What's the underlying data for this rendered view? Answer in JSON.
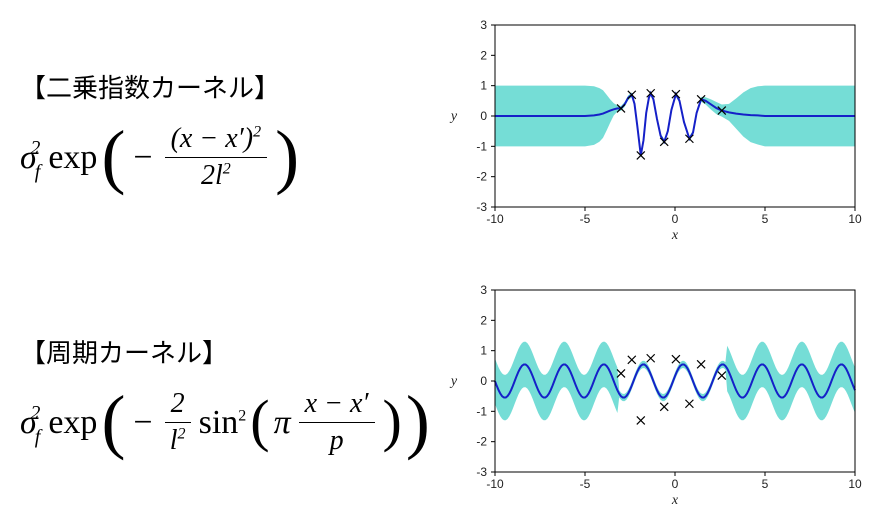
{
  "kernel1": {
    "heading": "【二乗指数カーネル】",
    "formula_parts": {
      "sigma_base": "σ",
      "sigma_sub": "f",
      "sigma_sup": "2",
      "exp": "exp",
      "num": "(x − x′)",
      "num_sup": "2",
      "den_2": "2",
      "den_l": "l",
      "den_sup": "2"
    },
    "chart": {
      "type": "gp-plot",
      "xlim": [
        -10,
        10
      ],
      "ylim": [
        -3,
        3
      ],
      "xticks": [
        -10,
        -5,
        0,
        5,
        10
      ],
      "yticks": [
        -3,
        -2,
        -1,
        0,
        1,
        2,
        3
      ],
      "xlabel": "x",
      "ylabel": "y",
      "band_color": "#6edbd4",
      "mean_color": "#1520c8",
      "background_color": "#ffffff",
      "box_border_color": "#000000",
      "tick_fontsize": 12,
      "label_fontsize": 14,
      "train_points": [
        [
          -3.0,
          0.25
        ],
        [
          -2.4,
          0.7
        ],
        [
          -1.9,
          -1.3
        ],
        [
          -1.35,
          0.75
        ],
        [
          -0.6,
          -0.85
        ],
        [
          0.05,
          0.72
        ],
        [
          0.8,
          -0.75
        ],
        [
          1.45,
          0.55
        ],
        [
          2.6,
          0.18
        ]
      ],
      "mean_line": [
        [
          -10,
          0.0
        ],
        [
          -9,
          0.0
        ],
        [
          -8,
          0.0
        ],
        [
          -7,
          0.0
        ],
        [
          -6,
          0.0
        ],
        [
          -5.5,
          0.0
        ],
        [
          -5,
          0.0
        ],
        [
          -4.5,
          0.02
        ],
        [
          -4.2,
          0.05
        ],
        [
          -4.0,
          0.08
        ],
        [
          -3.8,
          0.13
        ],
        [
          -3.6,
          0.18
        ],
        [
          -3.4,
          0.22
        ],
        [
          -3.2,
          0.25
        ],
        [
          -3.0,
          0.25
        ],
        [
          -2.8,
          0.38
        ],
        [
          -2.6,
          0.6
        ],
        [
          -2.4,
          0.7
        ],
        [
          -2.25,
          0.4
        ],
        [
          -2.1,
          -0.3
        ],
        [
          -1.9,
          -1.3
        ],
        [
          -1.75,
          -0.8
        ],
        [
          -1.6,
          0.1
        ],
        [
          -1.45,
          0.6
        ],
        [
          -1.35,
          0.75
        ],
        [
          -1.2,
          0.55
        ],
        [
          -1.0,
          -0.1
        ],
        [
          -0.8,
          -0.65
        ],
        [
          -0.6,
          -0.85
        ],
        [
          -0.4,
          -0.5
        ],
        [
          -0.2,
          0.2
        ],
        [
          0.05,
          0.72
        ],
        [
          0.25,
          0.5
        ],
        [
          0.5,
          -0.2
        ],
        [
          0.8,
          -0.75
        ],
        [
          1.0,
          -0.55
        ],
        [
          1.2,
          0.1
        ],
        [
          1.45,
          0.55
        ],
        [
          1.7,
          0.5
        ],
        [
          2.0,
          0.38
        ],
        [
          2.3,
          0.26
        ],
        [
          2.6,
          0.18
        ],
        [
          3.0,
          0.12
        ],
        [
          3.4,
          0.08
        ],
        [
          3.8,
          0.05
        ],
        [
          4.2,
          0.03
        ],
        [
          4.6,
          0.02
        ],
        [
          5,
          0.0
        ],
        [
          6,
          0.0
        ],
        [
          7,
          0.0
        ],
        [
          8,
          0.0
        ],
        [
          9,
          0.0
        ],
        [
          10,
          0.0
        ]
      ],
      "band_upper": [
        [
          -10,
          1.0
        ],
        [
          -9,
          1.0
        ],
        [
          -8,
          1.0
        ],
        [
          -7,
          1.0
        ],
        [
          -6,
          1.0
        ],
        [
          -5.5,
          1.0
        ],
        [
          -5,
          1.0
        ],
        [
          -4.5,
          0.98
        ],
        [
          -4.2,
          0.92
        ],
        [
          -4.0,
          0.85
        ],
        [
          -3.8,
          0.7
        ],
        [
          -3.6,
          0.55
        ],
        [
          -3.4,
          0.42
        ],
        [
          -3.2,
          0.35
        ],
        [
          -3.0,
          0.33
        ],
        [
          -2.8,
          0.46
        ],
        [
          -2.6,
          0.68
        ],
        [
          -2.4,
          0.78
        ],
        [
          -2.25,
          0.48
        ],
        [
          -2.1,
          -0.22
        ],
        [
          -1.9,
          -1.22
        ],
        [
          -1.75,
          -0.72
        ],
        [
          -1.6,
          0.18
        ],
        [
          -1.45,
          0.68
        ],
        [
          -1.35,
          0.83
        ],
        [
          -1.2,
          0.63
        ],
        [
          -1.0,
          -0.02
        ],
        [
          -0.8,
          -0.57
        ],
        [
          -0.6,
          -0.77
        ],
        [
          -0.4,
          -0.42
        ],
        [
          -0.2,
          0.28
        ],
        [
          0.05,
          0.8
        ],
        [
          0.25,
          0.58
        ],
        [
          0.5,
          -0.12
        ],
        [
          0.8,
          -0.67
        ],
        [
          1.0,
          -0.47
        ],
        [
          1.2,
          0.18
        ],
        [
          1.45,
          0.63
        ],
        [
          1.7,
          0.62
        ],
        [
          2.0,
          0.55
        ],
        [
          2.3,
          0.46
        ],
        [
          2.6,
          0.38
        ],
        [
          3.0,
          0.4
        ],
        [
          3.4,
          0.58
        ],
        [
          3.8,
          0.78
        ],
        [
          4.2,
          0.92
        ],
        [
          4.6,
          0.98
        ],
        [
          5,
          1.0
        ],
        [
          6,
          1.0
        ],
        [
          7,
          1.0
        ],
        [
          8,
          1.0
        ],
        [
          9,
          1.0
        ],
        [
          10,
          1.0
        ]
      ],
      "band_lower": [
        [
          -10,
          -1.0
        ],
        [
          -9,
          -1.0
        ],
        [
          -8,
          -1.0
        ],
        [
          -7,
          -1.0
        ],
        [
          -6,
          -1.0
        ],
        [
          -5.5,
          -1.0
        ],
        [
          -5,
          -1.0
        ],
        [
          -4.5,
          -0.95
        ],
        [
          -4.2,
          -0.85
        ],
        [
          -4.0,
          -0.72
        ],
        [
          -3.8,
          -0.48
        ],
        [
          -3.6,
          -0.22
        ],
        [
          -3.4,
          0.02
        ],
        [
          -3.2,
          0.15
        ],
        [
          -3.0,
          0.17
        ],
        [
          -2.8,
          0.3
        ],
        [
          -2.6,
          0.52
        ],
        [
          -2.4,
          0.62
        ],
        [
          -2.25,
          0.32
        ],
        [
          -2.1,
          -0.38
        ],
        [
          -1.9,
          -1.38
        ],
        [
          -1.75,
          -0.88
        ],
        [
          -1.6,
          0.02
        ],
        [
          -1.45,
          0.52
        ],
        [
          -1.35,
          0.67
        ],
        [
          -1.2,
          0.47
        ],
        [
          -1.0,
          -0.18
        ],
        [
          -0.8,
          -0.73
        ],
        [
          -0.6,
          -0.93
        ],
        [
          -0.4,
          -0.58
        ],
        [
          -0.2,
          0.12
        ],
        [
          0.05,
          0.64
        ],
        [
          0.25,
          0.42
        ],
        [
          0.5,
          -0.28
        ],
        [
          0.8,
          -0.83
        ],
        [
          1.0,
          -0.63
        ],
        [
          1.2,
          0.02
        ],
        [
          1.45,
          0.47
        ],
        [
          1.7,
          0.38
        ],
        [
          2.0,
          0.21
        ],
        [
          2.3,
          0.06
        ],
        [
          2.6,
          -0.02
        ],
        [
          3.0,
          -0.16
        ],
        [
          3.4,
          -0.42
        ],
        [
          3.8,
          -0.68
        ],
        [
          4.2,
          -0.86
        ],
        [
          4.6,
          -0.94
        ],
        [
          5,
          -1.0
        ],
        [
          6,
          -1.0
        ],
        [
          7,
          -1.0
        ],
        [
          8,
          -1.0
        ],
        [
          9,
          -1.0
        ],
        [
          10,
          -1.0
        ]
      ]
    }
  },
  "kernel2": {
    "heading": "【周期カーネル】",
    "formula_parts": {
      "sigma_base": "σ",
      "sigma_sub": "f",
      "sigma_sup": "2",
      "exp": "exp",
      "frac1_num": "2",
      "frac1_den_l": "l",
      "frac1_den_sup": "2",
      "sin": "sin",
      "sin_sup": "2",
      "pi": "π",
      "frac2_num": "x − x′",
      "frac2_den": "p"
    },
    "chart": {
      "type": "gp-plot",
      "xlim": [
        -10,
        10
      ],
      "ylim": [
        -3,
        3
      ],
      "xticks": [
        -10,
        -5,
        0,
        5,
        10
      ],
      "yticks": [
        -3,
        -2,
        -1,
        0,
        1,
        2,
        3
      ],
      "xlabel": "x",
      "ylabel": "y",
      "band_color": "#6edbd4",
      "mean_color": "#1520c8",
      "background_color": "#ffffff",
      "box_border_color": "#000000",
      "tick_fontsize": 12,
      "label_fontsize": 14,
      "train_points": [
        [
          -3.0,
          0.25
        ],
        [
          -2.4,
          0.7
        ],
        [
          -1.9,
          -1.3
        ],
        [
          -1.35,
          0.75
        ],
        [
          -0.6,
          -0.85
        ],
        [
          0.05,
          0.72
        ],
        [
          0.8,
          -0.75
        ],
        [
          1.45,
          0.55
        ],
        [
          2.6,
          0.18
        ]
      ],
      "periodic": {
        "period": 2.2,
        "mean_amp": 0.55,
        "band_half": 0.75,
        "pinch_region": [
          -3.2,
          2.9
        ]
      }
    }
  }
}
